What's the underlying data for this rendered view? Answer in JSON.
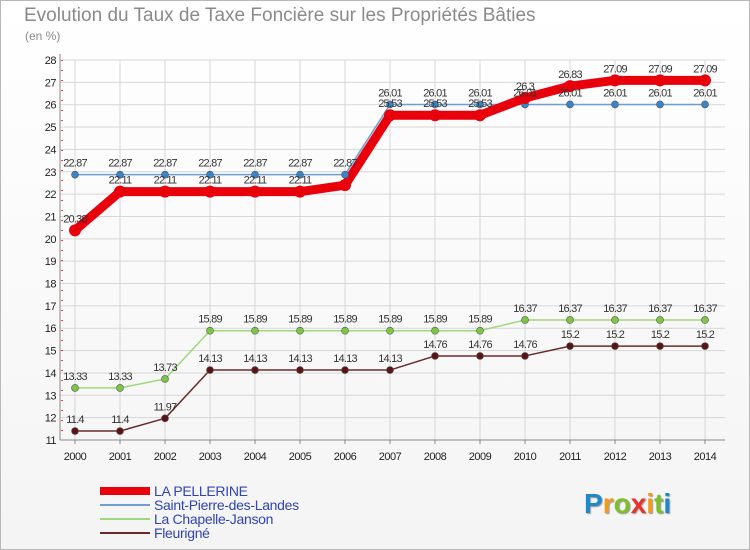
{
  "chart_data": {
    "type": "line",
    "title": "Evolution du Taux de Taxe Foncière sur les Propriétés Bâties",
    "ylabel": "(en %)",
    "xlabel": "",
    "ylim": [
      11,
      28
    ],
    "yticks": [
      "11",
      "12",
      "13",
      "14",
      "15",
      "16",
      "17",
      "18",
      "19",
      "20",
      "21",
      "22",
      "23",
      "24",
      "25",
      "26",
      "27",
      "28"
    ],
    "categories": [
      "2000",
      "2001",
      "2002",
      "2003",
      "2004",
      "2005",
      "2006",
      "2007",
      "2008",
      "2009",
      "2010",
      "2011",
      "2012",
      "2013",
      "2014"
    ],
    "grid": true,
    "legend_position": "bottom-left",
    "series": [
      {
        "name": "LA PELLERINE",
        "color": "#e8000b",
        "marker": "#e8000b",
        "values": [
          20.38,
          22.11,
          22.11,
          22.11,
          22.11,
          22.11,
          22.4,
          25.53,
          25.53,
          25.53,
          26.3,
          26.83,
          27.09,
          27.09,
          27.09
        ],
        "labels": [
          "20.38",
          "22.11",
          "22.11",
          "22.11",
          "22.11",
          "22.11",
          "",
          "25.53",
          "25.53",
          "25.53",
          "26.3",
          "26.83",
          "27.09",
          "27.09",
          "27.09"
        ]
      },
      {
        "name": "Saint-Pierre-des-Landes",
        "color": "#6f9fd0",
        "marker": "#3a84c9",
        "values": [
          22.87,
          22.87,
          22.87,
          22.87,
          22.87,
          22.87,
          22.87,
          26.01,
          26.01,
          26.01,
          26.01,
          26.01,
          26.01,
          26.01,
          26.01
        ],
        "labels": [
          "22.87",
          "22.87",
          "22.87",
          "22.87",
          "22.87",
          "22.87",
          "22.87",
          "26.01",
          "26.01",
          "26.01",
          "26.01",
          "26.01",
          "26.01",
          "26.01",
          "26.01"
        ]
      },
      {
        "name": "La Chapelle-Janson",
        "color": "#9fd87a",
        "marker": "#7cc843",
        "values": [
          13.33,
          13.33,
          13.73,
          15.89,
          15.89,
          15.89,
          15.89,
          15.89,
          15.89,
          15.89,
          16.37,
          16.37,
          16.37,
          16.37,
          16.37
        ],
        "labels": [
          "13.33",
          "13.33",
          "13.73",
          "15.89",
          "15.89",
          "15.89",
          "15.89",
          "15.89",
          "15.89",
          "15.89",
          "16.37",
          "16.37",
          "16.37",
          "16.37",
          "16.37"
        ]
      },
      {
        "name": "Fleurigné",
        "color": "#6b2a2a",
        "marker": "#5a1414",
        "values": [
          11.4,
          11.4,
          11.97,
          14.13,
          14.13,
          14.13,
          14.13,
          14.13,
          14.76,
          14.76,
          14.76,
          15.2,
          15.2,
          15.2,
          15.2
        ],
        "labels": [
          "11.4",
          "11.4",
          "11.97",
          "14.13",
          "14.13",
          "14.13",
          "14.13",
          "14.13",
          "14.76",
          "14.76",
          "14.76",
          "15.2",
          "15.2",
          "15.2",
          "15.2"
        ]
      }
    ]
  },
  "logo": {
    "letters": [
      "P",
      "r",
      "o",
      "x",
      "i",
      "t",
      "i"
    ],
    "colors": [
      "#1e88c8",
      "#f39a1e",
      "#7cbf2a",
      "#e8322a",
      "#f39a1e",
      "#7cbf2a",
      "#1e88c8"
    ]
  }
}
